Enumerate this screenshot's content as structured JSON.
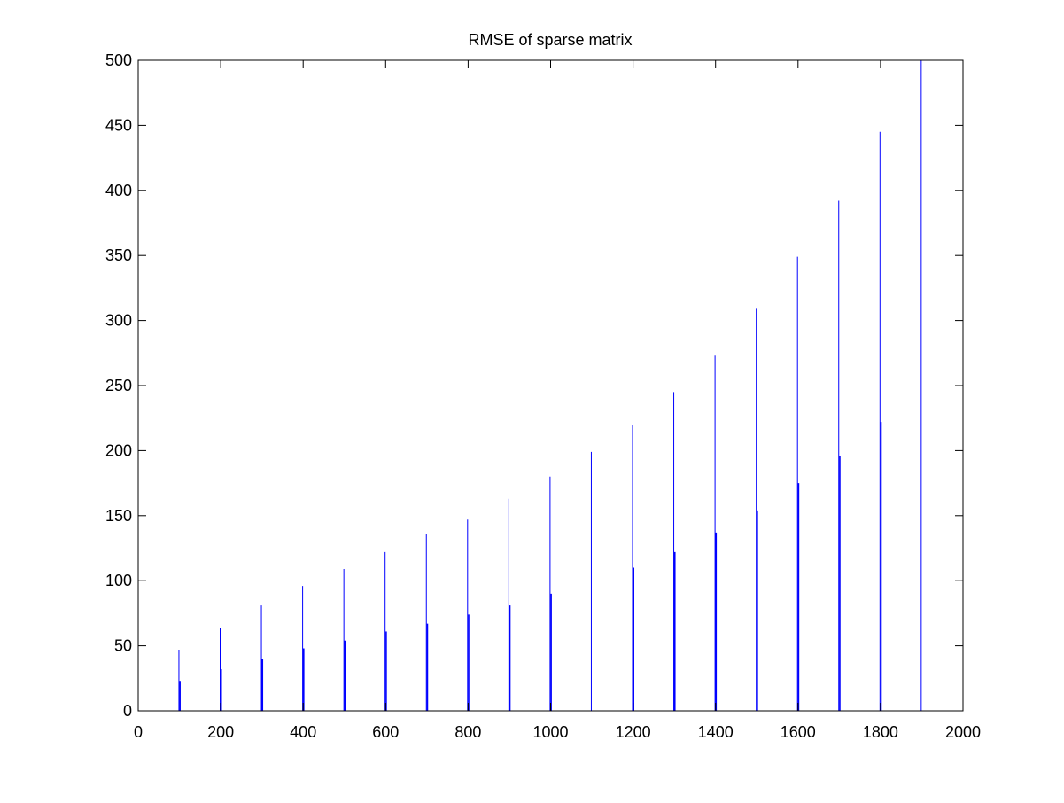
{
  "chart_data": {
    "type": "bar",
    "title": "RMSE of sparse matrix",
    "xlabel": "",
    "ylabel": "",
    "xlim": [
      0,
      2000
    ],
    "ylim": [
      0,
      500
    ],
    "x_ticks": [
      0,
      200,
      400,
      600,
      800,
      1000,
      1200,
      1400,
      1600,
      1800,
      2000
    ],
    "y_ticks": [
      0,
      50,
      100,
      150,
      200,
      250,
      300,
      350,
      400,
      450,
      500
    ],
    "grid": false,
    "legend": "none",
    "x": [
      100,
      200,
      300,
      400,
      500,
      600,
      700,
      800,
      900,
      1000,
      1100,
      1200,
      1300,
      1400,
      1500,
      1600,
      1700,
      1800,
      1900
    ],
    "series": [
      {
        "color": "#0000ff",
        "values": [
          47,
          64,
          81,
          96,
          109,
          122,
          136,
          147,
          163,
          180,
          199,
          220,
          245,
          273,
          309,
          349,
          392,
          445,
          500
        ]
      },
      {
        "color": "#0000ff",
        "values": [
          23,
          32,
          40,
          48,
          54,
          61,
          67,
          74,
          81,
          90,
          0,
          110,
          122,
          137,
          154,
          175,
          196,
          222,
          0
        ]
      }
    ]
  }
}
